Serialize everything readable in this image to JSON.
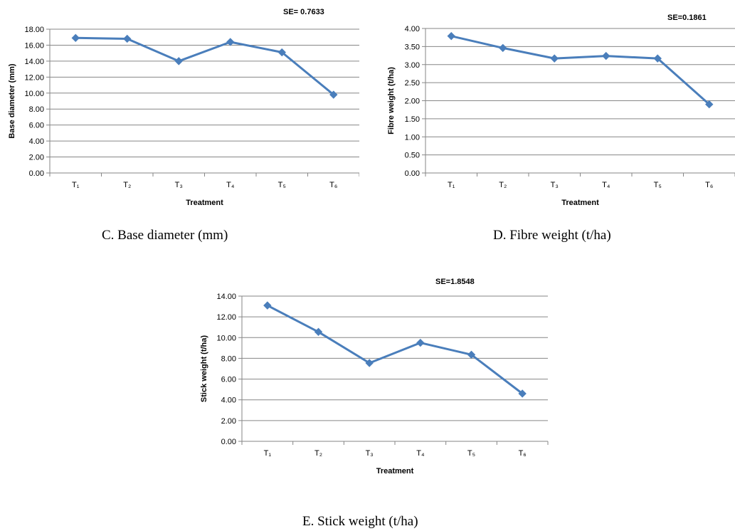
{
  "chart_data": [
    {
      "type": "line",
      "annotation": "SE= 0.7633",
      "xlabel": "Treatment",
      "ylabel": "Base diameter (mm)",
      "categories": [
        "T₁",
        "T₂",
        "T₃",
        "T₄",
        "T₅",
        "T₆"
      ],
      "values": [
        16.9,
        16.8,
        14.0,
        16.4,
        15.1,
        9.8
      ],
      "ylim": [
        0,
        18
      ],
      "ytick_step": 2,
      "ytick_decimals": 2,
      "grid": true,
      "caption": "C. Base diameter (mm)",
      "color": "#4A7EBB"
    },
    {
      "type": "line",
      "annotation": "SE=0.1861",
      "xlabel": "Treatment",
      "ylabel": "Fibre weight (t/ha)",
      "categories": [
        "T₁",
        "T₂",
        "T₃",
        "T₄",
        "T₅",
        "T₆"
      ],
      "values": [
        3.79,
        3.46,
        3.17,
        3.24,
        3.17,
        1.9
      ],
      "ylim": [
        0,
        4
      ],
      "ytick_step": 0.5,
      "ytick_decimals": 2,
      "grid": true,
      "caption": "D. Fibre weight (t/ha)",
      "color": "#4A7EBB"
    },
    {
      "type": "line",
      "annotation": "SE=1.8548",
      "xlabel": "Treatment",
      "ylabel": "Stick weight (t/ha)",
      "categories": [
        "T₁",
        "T₂",
        "T₃",
        "T₄",
        "T₅",
        "T₆"
      ],
      "values": [
        13.1,
        10.55,
        7.55,
        9.5,
        8.35,
        4.6
      ],
      "ylim": [
        0,
        14
      ],
      "ytick_step": 2,
      "ytick_decimals": 2,
      "grid": true,
      "caption": "E. Stick weight (t/ha)",
      "color": "#4A7EBB"
    }
  ]
}
